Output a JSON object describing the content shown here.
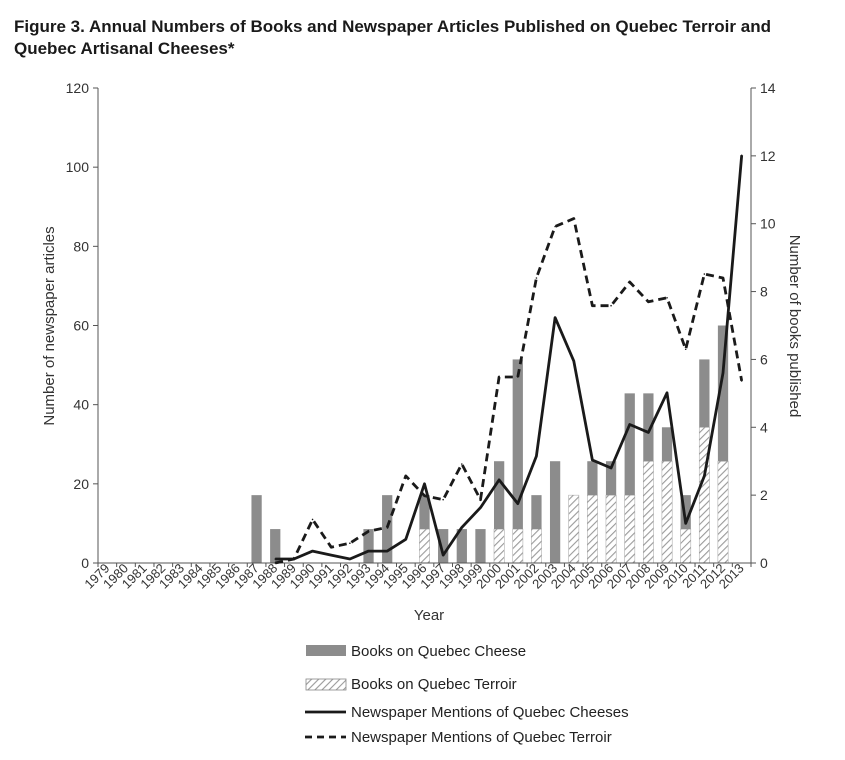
{
  "figure": {
    "title": "Figure 3.  Annual Numbers of Books and Newspaper Articles Published on Quebec Terroir and Quebec Artisanal Cheeses*"
  },
  "chart_data": {
    "type": "bar",
    "xlabel": "Year",
    "ylabel_left": "Number of newspaper articles",
    "ylabel_right": "Number of books published",
    "ylim_left": [
      0,
      120
    ],
    "ylim_right": [
      0,
      14
    ],
    "yticks_left": [
      0,
      20,
      40,
      60,
      80,
      100,
      120
    ],
    "yticks_right": [
      0,
      2,
      4,
      6,
      8,
      10,
      12,
      14
    ],
    "categories": [
      "1979",
      "1980",
      "1981",
      "1982",
      "1983",
      "1984",
      "1985",
      "1986",
      "1987",
      "1988",
      "1989",
      "1990",
      "1991",
      "1992",
      "1993",
      "1994",
      "1995",
      "1996",
      "1997",
      "1998",
      "1999",
      "2000",
      "2001",
      "2002",
      "2003",
      "2004",
      "2005",
      "2006",
      "2007",
      "2008",
      "2009",
      "2010",
      "2011",
      "2012",
      "2013"
    ],
    "grid": false,
    "legend_position": "bottom",
    "series": [
      {
        "name": "Books on Quebec Cheese",
        "kind": "bar",
        "axis": "right",
        "color": "#8c8c8c",
        "values": [
          0,
          0,
          0,
          0,
          0,
          0,
          0,
          0,
          2,
          1,
          0,
          0,
          0,
          0,
          1,
          2,
          0,
          1,
          1,
          1,
          1,
          2,
          5,
          1,
          3,
          0,
          1,
          1,
          3,
          2,
          1,
          1,
          2,
          4,
          0
        ]
      },
      {
        "name": "Books on Quebec Terroir",
        "kind": "bar",
        "axis": "right",
        "pattern": "hatched",
        "values": [
          0,
          0,
          0,
          0,
          0,
          0,
          0,
          0,
          0,
          0,
          0,
          0,
          0,
          0,
          0,
          0,
          0,
          1,
          0,
          0,
          0,
          1,
          1,
          1,
          0,
          2,
          2,
          2,
          2,
          3,
          3,
          1,
          4,
          3,
          0
        ]
      },
      {
        "name": "Newspaper Mentions of Quebec Cheeses",
        "kind": "line",
        "axis": "left",
        "style": "solid",
        "values": [
          null,
          null,
          null,
          null,
          null,
          null,
          null,
          null,
          null,
          1,
          1,
          3,
          2,
          1,
          3,
          3,
          6,
          20,
          2,
          9,
          14,
          21,
          15,
          27,
          62,
          51,
          26,
          24,
          35,
          33,
          43,
          10,
          22,
          48,
          103
        ]
      },
      {
        "name": "Newspaper Mentions of Quebec Terroir",
        "kind": "line",
        "axis": "left",
        "style": "dashed",
        "values": [
          null,
          null,
          null,
          null,
          null,
          null,
          null,
          null,
          null,
          0,
          1,
          11,
          4,
          5,
          8,
          9,
          22,
          17,
          16,
          25,
          16,
          47,
          47,
          72,
          85,
          87,
          65,
          65,
          71,
          66,
          67,
          54,
          73,
          72,
          46
        ]
      }
    ]
  }
}
